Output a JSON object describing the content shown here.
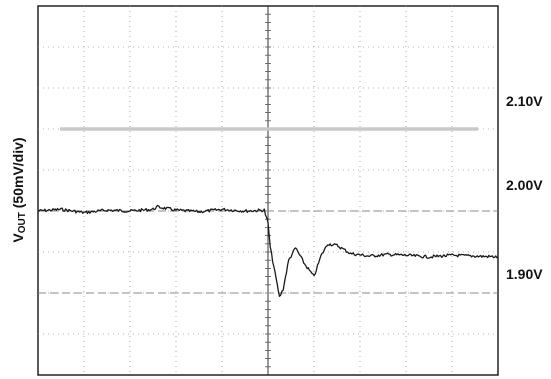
{
  "chart_data": {
    "type": "line",
    "ylabel": {
      "main": "V",
      "sub": "OUT",
      "suffix": " (50mV/div)"
    },
    "level_labels": [
      "2.10V",
      "2.00V",
      "1.90V"
    ],
    "reference_levels": [
      2.1,
      2.0,
      1.9
    ],
    "ylim": [
      1.8,
      2.25
    ],
    "xlim": [
      0,
      10
    ],
    "grid": true,
    "divisions": {
      "x": 10,
      "y": 9
    },
    "series": [
      {
        "x": [
          0,
          0.5,
          1.0,
          1.5,
          2.0,
          2.5,
          2.6,
          3.0,
          3.5,
          4.0,
          4.5,
          4.92,
          5.0,
          5.05,
          5.15,
          5.25,
          5.33,
          5.45,
          5.6,
          5.8,
          6.0,
          6.15,
          6.3,
          6.5,
          6.8,
          7.2,
          7.6,
          8.0,
          8.5,
          9.0,
          9.5,
          10.0
        ],
        "y": [
          2.0,
          2.002,
          1.998,
          2.001,
          2.0,
          2.002,
          2.005,
          2.001,
          1.999,
          2.002,
          2.0,
          2.001,
          1.985,
          1.955,
          1.925,
          1.895,
          1.905,
          1.94,
          1.955,
          1.935,
          1.92,
          1.945,
          1.96,
          1.958,
          1.948,
          1.945,
          1.947,
          1.946,
          1.944,
          1.946,
          1.945,
          1.944
        ]
      }
    ]
  }
}
